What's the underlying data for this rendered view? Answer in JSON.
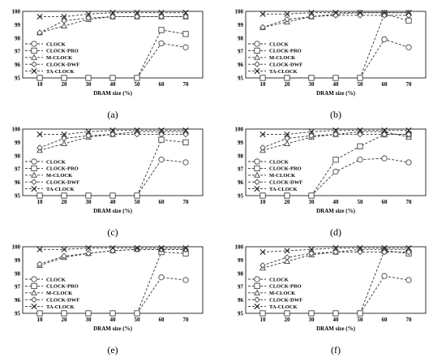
{
  "chart_data": [
    {
      "type": "line",
      "caption": "(a)",
      "xlabel": "DRAM size (%)",
      "x": [
        10,
        20,
        30,
        40,
        50,
        60,
        70
      ],
      "ylim": [
        95,
        100
      ],
      "yticks": [
        95,
        96,
        97,
        98,
        99,
        100
      ],
      "legend_position": "left",
      "series": [
        {
          "name": "CLOCK",
          "values": [
            95,
            95,
            95,
            95,
            95,
            97.6,
            97.3
          ]
        },
        {
          "name": "CLOCK-PRO",
          "values": [
            95,
            95,
            95,
            95,
            95,
            98.6,
            98.3
          ]
        },
        {
          "name": "M-CLOCK",
          "values": [
            98.4,
            98.9,
            99.4,
            99.6,
            99.6,
            99.6,
            99.6
          ]
        },
        {
          "name": "CLOCK-DWF",
          "values": [
            98.4,
            99.3,
            99.5,
            99.6,
            99.6,
            99.6,
            99.6
          ]
        },
        {
          "name": "TA-CLOCK",
          "values": [
            99.6,
            99.6,
            99.8,
            99.9,
            99.9,
            99.9,
            99.9
          ]
        }
      ]
    },
    {
      "type": "line",
      "caption": "(b)",
      "xlabel": "DRAM size (%)",
      "x": [
        10,
        20,
        30,
        40,
        50,
        60,
        70
      ],
      "ylim": [
        95,
        100
      ],
      "yticks": [
        95,
        96,
        97,
        98,
        99,
        100
      ],
      "legend_position": "left",
      "series": [
        {
          "name": "CLOCK",
          "values": [
            95,
            95,
            95,
            95,
            95,
            97.9,
            97.3
          ]
        },
        {
          "name": "CLOCK-PRO",
          "values": [
            95,
            95,
            95,
            95,
            95,
            99.8,
            99.3
          ]
        },
        {
          "name": "M-CLOCK",
          "values": [
            98.8,
            99.2,
            99.6,
            99.8,
            99.9,
            99.9,
            99.9
          ]
        },
        {
          "name": "CLOCK-DWF",
          "values": [
            98.8,
            99.4,
            99.6,
            99.7,
            99.7,
            99.7,
            99.7
          ]
        },
        {
          "name": "TA-CLOCK",
          "values": [
            99.8,
            99.8,
            99.9,
            99.9,
            99.9,
            99.9,
            99.9
          ]
        }
      ]
    },
    {
      "type": "line",
      "caption": "(c)",
      "xlabel": "DRAM size (%)",
      "x": [
        10,
        20,
        30,
        40,
        50,
        60,
        70
      ],
      "ylim": [
        95,
        100
      ],
      "yticks": [
        95,
        96,
        97,
        98,
        99,
        100
      ],
      "legend_position": "left",
      "series": [
        {
          "name": "CLOCK",
          "values": [
            95,
            95,
            95,
            95,
            95,
            97.7,
            97.5
          ]
        },
        {
          "name": "CLOCK-PRO",
          "values": [
            95,
            95,
            95,
            95,
            95,
            99.2,
            99.0
          ]
        },
        {
          "name": "M-CLOCK",
          "values": [
            98.4,
            98.9,
            99.4,
            99.6,
            99.8,
            99.8,
            99.8
          ]
        },
        {
          "name": "CLOCK-DWF",
          "values": [
            98.6,
            99.3,
            99.5,
            99.6,
            99.6,
            99.6,
            99.6
          ]
        },
        {
          "name": "TA-CLOCK",
          "values": [
            99.6,
            99.6,
            99.8,
            99.9,
            99.9,
            99.9,
            99.9
          ]
        }
      ]
    },
    {
      "type": "line",
      "caption": "(d)",
      "xlabel": "DRAM size (%)",
      "x": [
        10,
        20,
        30,
        40,
        50,
        60,
        70
      ],
      "ylim": [
        95,
        100
      ],
      "yticks": [
        95,
        96,
        97,
        98,
        99,
        100
      ],
      "legend_position": "left",
      "series": [
        {
          "name": "CLOCK",
          "values": [
            95,
            95,
            95,
            96.8,
            97.7,
            97.8,
            97.5
          ]
        },
        {
          "name": "CLOCK-PRO",
          "values": [
            95,
            95,
            95,
            97.7,
            98.7,
            99.6,
            99.6
          ]
        },
        {
          "name": "M-CLOCK",
          "values": [
            98.4,
            98.9,
            99.4,
            99.6,
            99.8,
            99.8,
            99.4
          ]
        },
        {
          "name": "CLOCK-DWF",
          "values": [
            98.6,
            99.3,
            99.5,
            99.6,
            99.6,
            99.6,
            99.6
          ]
        },
        {
          "name": "TA-CLOCK",
          "values": [
            99.6,
            99.6,
            99.8,
            99.9,
            99.9,
            99.9,
            99.9
          ]
        }
      ]
    },
    {
      "type": "line",
      "caption": "(e)",
      "xlabel": "DRAM size (%)",
      "x": [
        10,
        20,
        30,
        40,
        50,
        60,
        70
      ],
      "ylim": [
        95,
        100
      ],
      "yticks": [
        95,
        96,
        97,
        98,
        99,
        100
      ],
      "legend_position": "left",
      "series": [
        {
          "name": "CLOCK",
          "values": [
            95,
            95,
            95,
            95,
            95,
            97.7,
            97.5
          ]
        },
        {
          "name": "CLOCK-PRO",
          "values": [
            95,
            95,
            95,
            95,
            95,
            99.6,
            99.5
          ]
        },
        {
          "name": "M-CLOCK",
          "values": [
            98.6,
            99.2,
            99.5,
            99.7,
            99.8,
            99.8,
            99.8
          ]
        },
        {
          "name": "CLOCK-DWF",
          "values": [
            98.7,
            99.3,
            99.5,
            99.7,
            99.8,
            99.8,
            99.8
          ]
        },
        {
          "name": "TA-CLOCK",
          "values": [
            99.8,
            99.8,
            99.9,
            99.9,
            99.9,
            99.9,
            99.9
          ]
        }
      ]
    },
    {
      "type": "line",
      "caption": "(f)",
      "xlabel": "DRAM size (%)",
      "x": [
        10,
        20,
        30,
        40,
        50,
        60,
        70
      ],
      "ylim": [
        95,
        100
      ],
      "yticks": [
        95,
        96,
        97,
        98,
        99,
        100
      ],
      "legend_position": "left",
      "series": [
        {
          "name": "CLOCK",
          "values": [
            95,
            95,
            95,
            95,
            95,
            97.8,
            97.5
          ]
        },
        {
          "name": "CLOCK-PRO",
          "values": [
            95,
            95,
            95,
            95,
            95,
            99.7,
            99.5
          ]
        },
        {
          "name": "M-CLOCK",
          "values": [
            98.4,
            98.9,
            99.4,
            99.6,
            99.8,
            99.8,
            99.8
          ]
        },
        {
          "name": "CLOCK-DWF",
          "values": [
            98.6,
            99.2,
            99.5,
            99.6,
            99.6,
            99.6,
            99.6
          ]
        },
        {
          "name": "TA-CLOCK",
          "values": [
            99.6,
            99.7,
            99.8,
            99.9,
            99.9,
            99.9,
            99.9
          ]
        }
      ]
    }
  ]
}
